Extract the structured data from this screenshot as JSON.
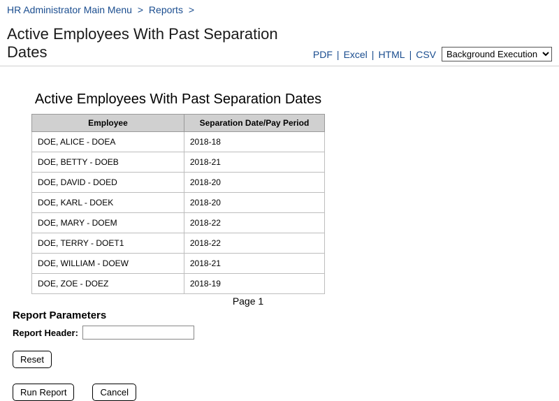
{
  "breadcrumb": {
    "items": [
      "HR Administrator Main Menu",
      "Reports"
    ],
    "separator": ">"
  },
  "header": {
    "title": "Active Employees With Past Separation Dates"
  },
  "export": {
    "pdf": "PDF",
    "excel": "Excel",
    "html": "HTML",
    "csv": "CSV",
    "select_value": "Background Execution"
  },
  "report": {
    "title": "Active Employees With Past Separation Dates",
    "columns": [
      "Employee",
      "Separation Date/Pay Period"
    ],
    "rows": [
      [
        "DOE, ALICE - DOEA",
        "2018-18"
      ],
      [
        "DOE, BETTY - DOEB",
        "2018-21"
      ],
      [
        "DOE, DAVID - DOED",
        "2018-20"
      ],
      [
        "DOE, KARL - DOEK",
        "2018-20"
      ],
      [
        "DOE, MARY - DOEM",
        "2018-22"
      ],
      [
        "DOE, TERRY - DOET1",
        "2018-22"
      ],
      [
        "DOE, WILLIAM - DOEW",
        "2018-21"
      ],
      [
        "DOE, ZOE - DOEZ",
        "2018-19"
      ]
    ],
    "page_indicator": "Page 1"
  },
  "params": {
    "heading": "Report Parameters",
    "header_label": "Report Header:",
    "header_value": ""
  },
  "buttons": {
    "reset": "Reset",
    "run": "Run Report",
    "cancel": "Cancel"
  }
}
